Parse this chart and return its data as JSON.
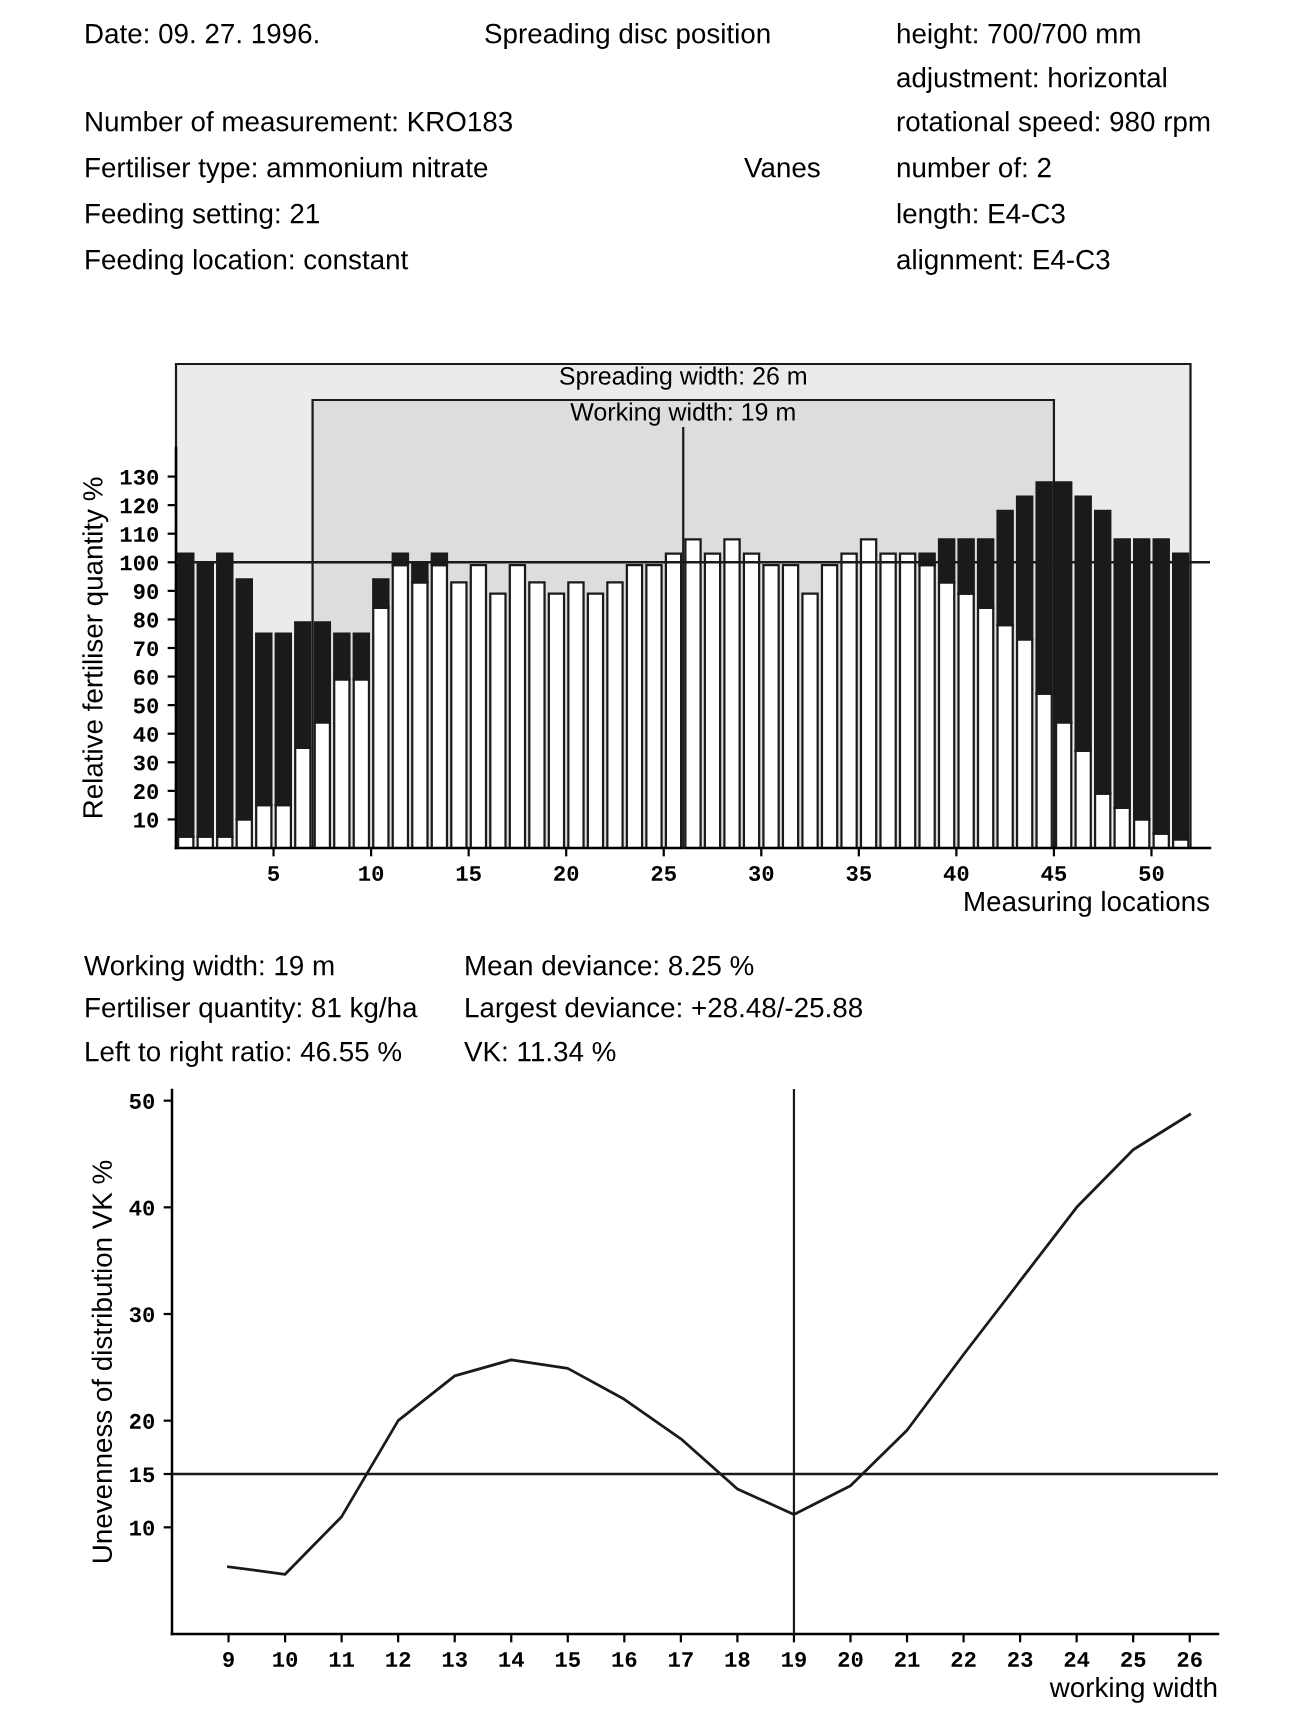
{
  "chart_data": [
    {
      "type": "bar",
      "ylabel": "Relative fertiliser quantity %",
      "xlabel": "Measuring locations",
      "annotations": [
        "Date: 09. 27. 1996.",
        "Spreading disc position",
        "height: 700/700 mm",
        "adjustment: horizontal",
        "Number of measurement: KRO183",
        "rotational speed: 980 rpm",
        "Fertiliser type: ammonium nitrate",
        "Vanes",
        "number of: 2",
        "Feeding setting: 21",
        "length: E4-C3",
        "Feeding location: constant",
        "alignment: E4-C3",
        "Working width: 19 m",
        "Mean deviance: 8.25 %",
        "Fertiliser quantity: 81 kg/ha",
        "Largest deviance: +28.48/-25.88",
        "Left to right ratio: 46.55 %",
        "VK: 11.34 %"
      ],
      "x": [
        0.5,
        1.5,
        2.5,
        3.5,
        4.5,
        5.5,
        6.5,
        7.5,
        8.5,
        9.5,
        10.5,
        11.5,
        12.5,
        13.5,
        14.5,
        15.5,
        16.5,
        17.5,
        18.5,
        19.5,
        20.5,
        21.5,
        22.5,
        23.5,
        24.5,
        25.5,
        26.5,
        27.5,
        28.5,
        29.5,
        30.5,
        31.5,
        32.5,
        33.5,
        34.5,
        35.5,
        36.5,
        37.5,
        38.5,
        39.5,
        40.5,
        41.5,
        42.5,
        43.5,
        44.5,
        45.5,
        46.5,
        47.5,
        48.5,
        49.5,
        50.5,
        51.5
      ],
      "series": [
        {
          "color": "#ffffff",
          "values": [
            4,
            4,
            4,
            10,
            15,
            15,
            35,
            44,
            59,
            59,
            84,
            99,
            93,
            99,
            93,
            99,
            89,
            99,
            93,
            89,
            93,
            89,
            93,
            99,
            99,
            103,
            108,
            103,
            108,
            103,
            99,
            99,
            89,
            99,
            103,
            108,
            103,
            103,
            99,
            93,
            89,
            84,
            78,
            73,
            54,
            44,
            34,
            19,
            14,
            10,
            5,
            3
          ]
        },
        {
          "color": "#1a1a1a",
          "values": [
            99,
            96,
            99,
            84,
            60,
            60,
            44,
            35,
            16,
            16,
            10,
            4,
            7,
            4,
            null,
            null,
            null,
            null,
            null,
            null,
            null,
            null,
            null,
            null,
            null,
            null,
            null,
            null,
            null,
            null,
            null,
            null,
            null,
            null,
            null,
            null,
            null,
            null,
            4,
            15,
            19,
            24,
            40,
            50,
            74,
            84,
            89,
            99,
            94,
            98,
            103,
            100
          ]
        }
      ],
      "stacked": true,
      "xlim": [
        0,
        53
      ],
      "xticks": [
        5,
        10,
        15,
        20,
        25,
        30,
        35,
        40,
        45,
        50
      ],
      "ylim": [
        0,
        140
      ],
      "yticks": [
        10,
        20,
        30,
        40,
        50,
        60,
        70,
        80,
        90,
        100,
        110,
        120,
        130
      ],
      "ref_lines": [
        {
          "axis": "y",
          "value": 100
        },
        {
          "axis": "x",
          "value": 26
        }
      ],
      "bands": [
        {
          "axis": "x",
          "from": 0,
          "to": 52,
          "label": "Spreading width: 26 m",
          "color": "#ebebeb"
        },
        {
          "axis": "x",
          "from": 7,
          "to": 45,
          "label": "Working width: 19 m",
          "color": "#dddddd"
        }
      ],
      "grid": false,
      "legend": false
    },
    {
      "type": "line",
      "ylabel": "Unevenness of distribution VK %",
      "xlabel": "working width",
      "x": [
        9,
        10,
        11,
        12,
        13,
        14,
        15,
        16,
        17,
        18,
        19,
        20,
        21,
        22,
        23,
        24,
        25,
        26
      ],
      "series": [
        {
          "color": "#1a1a1a",
          "values": [
            6.3,
            5.6,
            11,
            20,
            24.2,
            25.7,
            24.9,
            22,
            18.3,
            13.6,
            11.2,
            13.9,
            19.1,
            26.2,
            33.1,
            40,
            45.4,
            48.7
          ]
        }
      ],
      "xlim": [
        8,
        26.5
      ],
      "xticks": [
        9,
        10,
        11,
        12,
        13,
        14,
        15,
        16,
        17,
        18,
        19,
        20,
        21,
        22,
        23,
        24,
        25,
        26
      ],
      "ylim": [
        0,
        51
      ],
      "yticks": [
        10,
        15,
        20,
        30,
        40,
        50
      ],
      "ref_lines": [
        {
          "axis": "y",
          "value": 15
        },
        {
          "axis": "x",
          "value": 19
        }
      ],
      "grid": false,
      "legend": false,
      "marker": "none",
      "line_style": "solid"
    }
  ]
}
